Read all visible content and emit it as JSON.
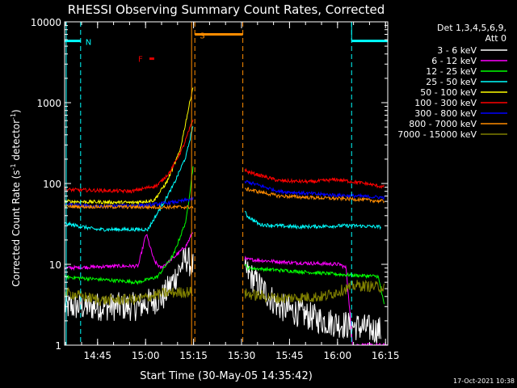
{
  "chart_data": {
    "type": "line",
    "title": "RHESSI Observing Summary Count Rates, Corrected",
    "xlabel": "Start Time (30-May-05 14:35:42)",
    "ylabel_main": "Corrected Count Rate (s",
    "ylabel_sup": "-1",
    "ylabel_mid": " detector",
    "ylabel_end": ")",
    "x_range_min": [
      -1,
      100
    ],
    "y_log_range": [
      1,
      10000
    ],
    "x_ticks": [
      {
        "label": "14:45",
        "min": 9.3
      },
      {
        "label": "15:00",
        "min": 24.3
      },
      {
        "label": "15:15",
        "min": 39.3
      },
      {
        "label": "15:30",
        "min": 54.3
      },
      {
        "label": "15:45",
        "min": 69.3
      },
      {
        "label": "16:00",
        "min": 84.3
      },
      {
        "label": "16:15",
        "min": 99.3
      }
    ],
    "y_ticks": [
      {
        "label": "1",
        "v": 1
      },
      {
        "label": "10",
        "v": 10
      },
      {
        "label": "100",
        "v": 100
      },
      {
        "label": "1000",
        "v": 1000
      },
      {
        "label": "10000",
        "v": 10000
      }
    ],
    "legend_header": [
      "Det 1,3,4,5,6,9,",
      "Att 0"
    ],
    "timestamp": "17-Oct-2021 10:38",
    "night": {
      "color": "#00ffff",
      "label": "N",
      "label_color": "#00ffff",
      "bars": [
        [
          -1,
          4.0
        ],
        [
          88.7,
          100
        ]
      ],
      "dash_at": [
        4.0,
        88.7
      ],
      "level": 5800
    },
    "saa": {
      "color": "#ff8c00",
      "label": "S",
      "label_color": "#ff8c00",
      "bars": [
        [
          39.7,
          54.7
        ]
      ],
      "dash_at": [
        39.7,
        54.7
      ],
      "level": 7000
    },
    "flare": {
      "color": "#e00000",
      "label": "F",
      "bar": [
        25.5,
        27.0
      ],
      "level": 3500
    },
    "gaps": [
      [
        39.3,
        55.3
      ]
    ],
    "series": [
      {
        "name": "3 - 6 keV",
        "color": "#ffffff",
        "pts": [
          [
            -1,
            3
          ],
          [
            22,
            3
          ],
          [
            30,
            4
          ],
          [
            37,
            12
          ],
          [
            39.3,
            9
          ],
          [
            56,
            8
          ],
          [
            66,
            3
          ],
          [
            80,
            2
          ],
          [
            90,
            1.7
          ],
          [
            98,
            1.5
          ]
        ]
      },
      {
        "name": "6 - 12 keV",
        "color": "#ff00ff",
        "pts": [
          [
            -1,
            9
          ],
          [
            15,
            9.5
          ],
          [
            22,
            9.5
          ],
          [
            24.5,
            24
          ],
          [
            27,
            11
          ],
          [
            29,
            9
          ],
          [
            33,
            12
          ],
          [
            37,
            17
          ],
          [
            39.3,
            26
          ],
          [
            56,
            11.5
          ],
          [
            70,
            10.5
          ],
          [
            85,
            10
          ],
          [
            87,
            9
          ],
          [
            89,
            1
          ],
          [
            100,
            1
          ]
        ]
      },
      {
        "name": "12 - 25 keV",
        "color": "#00ff00",
        "pts": [
          [
            -1,
            7
          ],
          [
            22,
            6
          ],
          [
            28,
            7
          ],
          [
            33,
            13
          ],
          [
            37,
            35
          ],
          [
            39.3,
            180
          ],
          [
            56,
            9
          ],
          [
            75,
            8
          ],
          [
            85,
            7.5
          ],
          [
            90,
            7.3
          ],
          [
            97,
            7.1
          ],
          [
            99,
            3
          ]
        ]
      },
      {
        "name": "25 - 50 keV",
        "color": "#00ffff",
        "pts": [
          [
            -1,
            32
          ],
          [
            9,
            27
          ],
          [
            25,
            27
          ],
          [
            29,
            50
          ],
          [
            33,
            95
          ],
          [
            37,
            220
          ],
          [
            39.3,
            560
          ],
          [
            56,
            40
          ],
          [
            60,
            31
          ],
          [
            72,
            29
          ],
          [
            86,
            30
          ],
          [
            90,
            30
          ],
          [
            98,
            29
          ]
        ]
      },
      {
        "name": "50 - 100 keV",
        "color": "#ffff00",
        "pts": [
          [
            -1,
            60
          ],
          [
            20,
            58
          ],
          [
            27,
            62
          ],
          [
            31,
            105
          ],
          [
            35,
            250
          ],
          [
            39.3,
            1700
          ]
        ]
      },
      {
        "name": "100 - 300 keV",
        "color": "#ff0000",
        "pts": [
          [
            -1,
            84
          ],
          [
            20,
            80
          ],
          [
            28,
            95
          ],
          [
            32,
            140
          ],
          [
            36,
            280
          ],
          [
            39.3,
            650
          ],
          [
            56,
            140
          ],
          [
            66,
            108
          ],
          [
            76,
            105
          ],
          [
            84,
            112
          ],
          [
            93,
            100
          ],
          [
            99,
            90
          ]
        ]
      },
      {
        "name": "300 - 800 keV",
        "color": "#0000ff",
        "pts": [
          [
            -1,
            55
          ],
          [
            10,
            52
          ],
          [
            25,
            54
          ],
          [
            35,
            60
          ],
          [
            39.3,
            65
          ],
          [
            56,
            105
          ],
          [
            66,
            80
          ],
          [
            80,
            73
          ],
          [
            90,
            70
          ],
          [
            99,
            67
          ]
        ]
      },
      {
        "name": "800 - 7000 keV",
        "color": "#ff8c00",
        "pts": [
          [
            -1,
            52
          ],
          [
            25,
            51
          ],
          [
            39.3,
            51
          ],
          [
            56,
            85
          ],
          [
            66,
            70
          ],
          [
            80,
            66
          ],
          [
            90,
            64
          ],
          [
            99,
            60
          ]
        ]
      },
      {
        "name": "7000 - 15000 keV",
        "color": "#808000",
        "pts": [
          [
            -1,
            4.5
          ],
          [
            10,
            3.6
          ],
          [
            22,
            3.7
          ],
          [
            30,
            4.4
          ],
          [
            39.3,
            4.6
          ],
          [
            56,
            4.3
          ],
          [
            66,
            3.8
          ],
          [
            80,
            4.0
          ],
          [
            90,
            5.5
          ],
          [
            99,
            5.2
          ]
        ]
      }
    ]
  }
}
